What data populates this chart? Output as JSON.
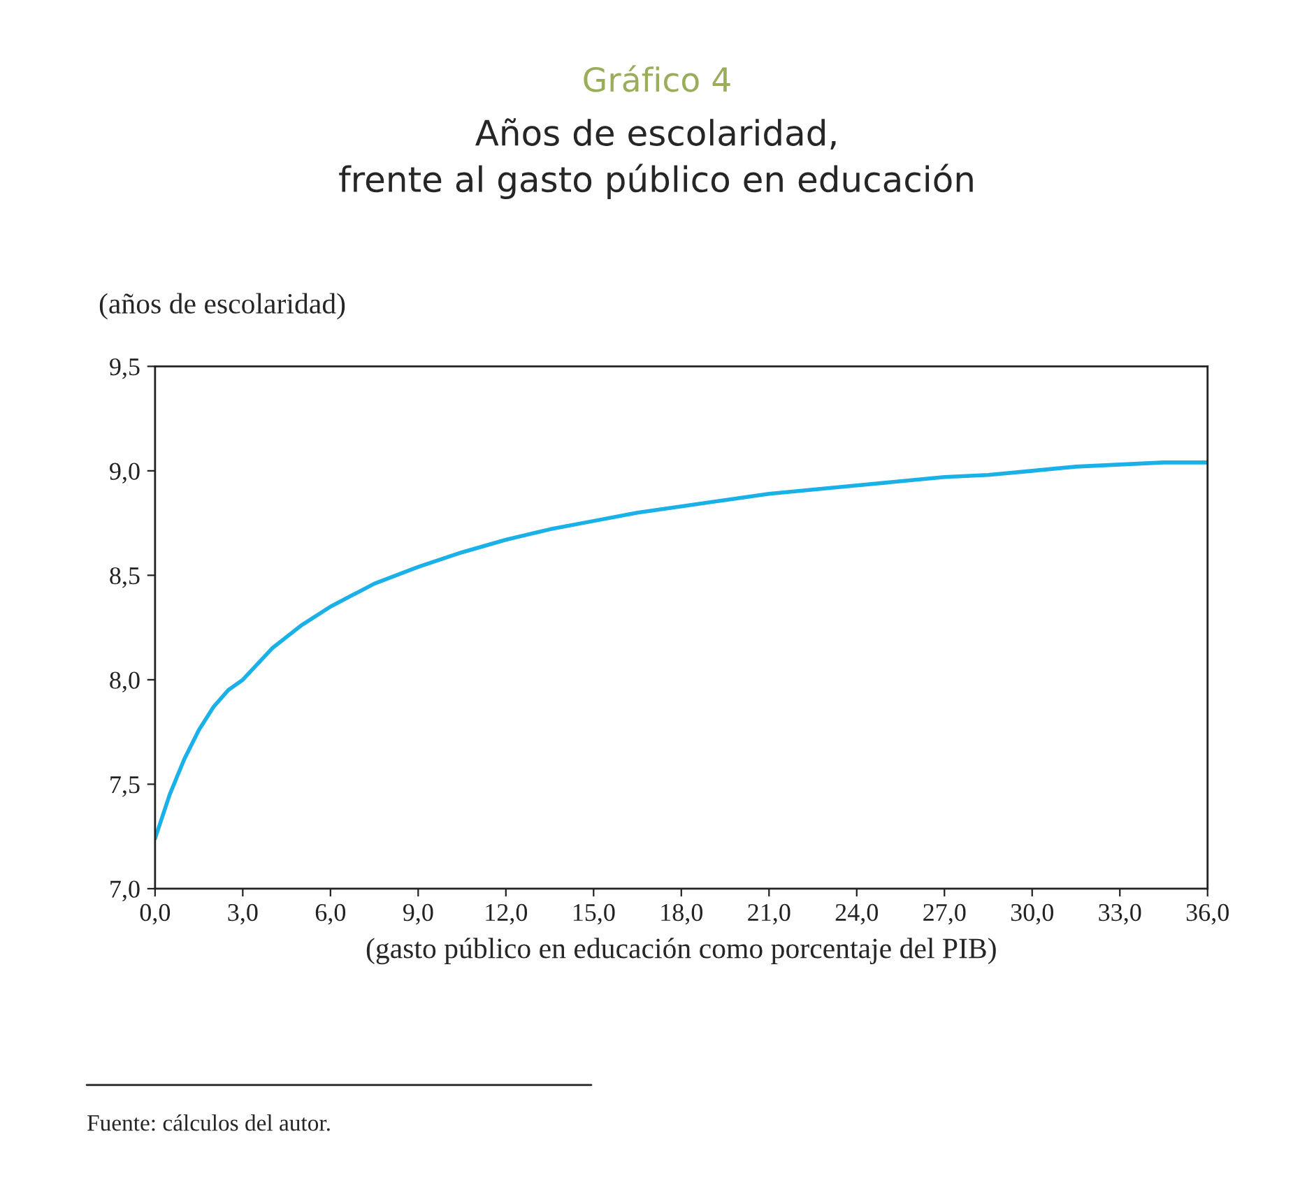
{
  "chart_data": {
    "type": "line",
    "title": "Gráfico 4",
    "subtitle": "Años de escolaridad,\nfrente al gasto público en educación",
    "xlabel": "(gasto público en educación como porcentaje del PIB)",
    "ylabel": "(años de escolaridad)",
    "x": [
      0,
      0.5,
      1,
      1.5,
      2,
      2.5,
      3,
      4,
      5,
      6,
      7.5,
      9,
      10.5,
      12,
      13.5,
      15,
      16.5,
      18,
      19.5,
      21,
      22.5,
      24,
      25.5,
      27,
      28.5,
      30,
      31.5,
      33,
      34.5,
      36
    ],
    "series": [
      {
        "color": "#1ab0e8",
        "values": [
          7.24,
          7.45,
          7.62,
          7.76,
          7.87,
          7.95,
          8.0,
          8.15,
          8.26,
          8.35,
          8.46,
          8.54,
          8.61,
          8.67,
          8.72,
          8.76,
          8.8,
          8.83,
          8.86,
          8.89,
          8.91,
          8.93,
          8.95,
          8.97,
          8.98,
          9.0,
          9.02,
          9.03,
          9.04,
          9.04
        ]
      }
    ],
    "xlim": [
      0,
      36
    ],
    "ylim": [
      7.0,
      9.5
    ],
    "xticks": [
      {
        "value": 0,
        "label": "0,0"
      },
      {
        "value": 3,
        "label": "3,0"
      },
      {
        "value": 6,
        "label": "6,0"
      },
      {
        "value": 9,
        "label": "9,0"
      },
      {
        "value": 12,
        "label": "12,0"
      },
      {
        "value": 15,
        "label": "15,0"
      },
      {
        "value": 18,
        "label": "18,0"
      },
      {
        "value": 21,
        "label": "21,0"
      },
      {
        "value": 24,
        "label": "24,0"
      },
      {
        "value": 27,
        "label": "27,0"
      },
      {
        "value": 30,
        "label": "30,0"
      },
      {
        "value": 33,
        "label": "33,0"
      },
      {
        "value": 36,
        "label": "36,0"
      }
    ],
    "yticks": [
      {
        "value": 7.0,
        "label": "7,0"
      },
      {
        "value": 7.5,
        "label": "7,5"
      },
      {
        "value": 8.0,
        "label": "8,0"
      },
      {
        "value": 8.5,
        "label": "8,5"
      },
      {
        "value": 9.0,
        "label": "9,0"
      },
      {
        "value": 9.5,
        "label": "9,5"
      }
    ],
    "annotations": [
      "Fuente: cálculos del autor."
    ],
    "grid": false,
    "legend": false,
    "marker": "none",
    "line_style": "solid"
  }
}
